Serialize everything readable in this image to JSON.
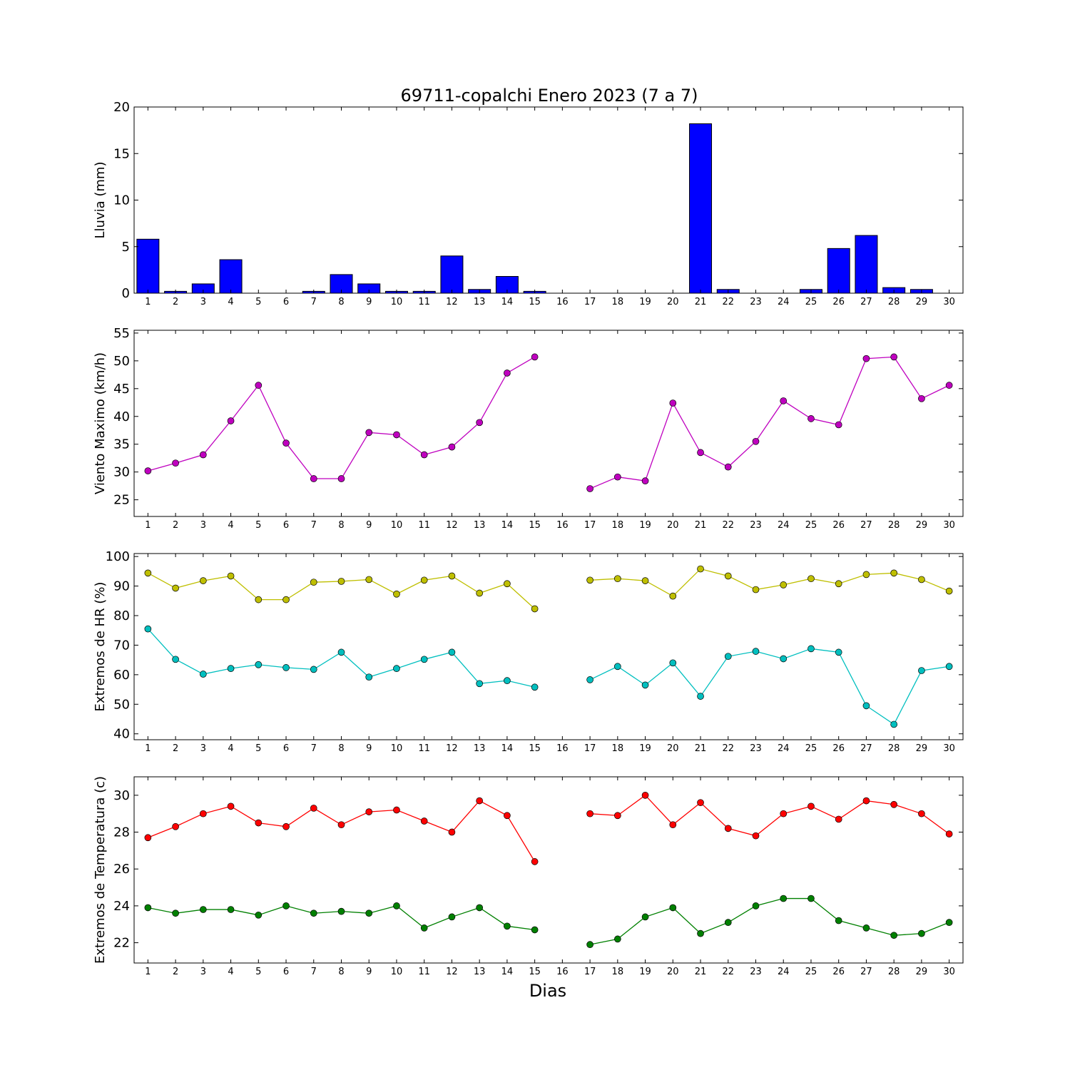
{
  "title": "69711-copalchi Enero 2023  (7 a 7)",
  "xlabel": "Dias",
  "chart_data": [
    {
      "type": "bar",
      "ylabel": "Lluvia (mm)",
      "ylim": [
        0,
        20
      ],
      "yticks": [
        0,
        5,
        10,
        15,
        20
      ],
      "x": [
        1,
        2,
        3,
        4,
        5,
        6,
        7,
        8,
        9,
        10,
        11,
        12,
        13,
        14,
        15,
        16,
        17,
        18,
        19,
        20,
        21,
        22,
        23,
        24,
        25,
        26,
        27,
        28,
        29,
        30
      ],
      "xlim": [
        0.5,
        30.5
      ],
      "series": [
        {
          "color": "#0000ff",
          "values": [
            5.8,
            0.2,
            1.0,
            3.6,
            0,
            0,
            0.2,
            2.0,
            1.0,
            0.2,
            0.2,
            4.0,
            0.4,
            1.8,
            0.2,
            0,
            0,
            0,
            0,
            0,
            18.2,
            0.4,
            0,
            0,
            0.4,
            4.8,
            6.2,
            0.6,
            0.4,
            0
          ]
        }
      ]
    },
    {
      "type": "line",
      "ylabel": "Viento Maximo (km/h)",
      "ylim": [
        22,
        55.5
      ],
      "yticks": [
        25,
        30,
        35,
        40,
        45,
        50,
        55
      ],
      "x": [
        1,
        2,
        3,
        4,
        5,
        6,
        7,
        8,
        9,
        10,
        11,
        12,
        13,
        14,
        15,
        16,
        17,
        18,
        19,
        20,
        21,
        22,
        23,
        24,
        25,
        26,
        27,
        28,
        29,
        30
      ],
      "xlim": [
        0.5,
        30.5
      ],
      "series": [
        {
          "color": "#bf00bf",
          "values": [
            30.2,
            31.6,
            33.1,
            39.2,
            45.6,
            35.2,
            28.8,
            28.8,
            37.1,
            36.7,
            33.1,
            34.5,
            38.9,
            47.8,
            50.7,
            null,
            27.0,
            29.1,
            28.4,
            42.4,
            33.5,
            30.9,
            35.5,
            42.8,
            39.6,
            38.5,
            50.4,
            50.7,
            43.2,
            45.6
          ]
        }
      ]
    },
    {
      "type": "line",
      "ylabel": "Extremos de HR (%)",
      "ylim": [
        38,
        101
      ],
      "yticks": [
        40,
        50,
        60,
        70,
        80,
        90,
        100
      ],
      "x": [
        1,
        2,
        3,
        4,
        5,
        6,
        7,
        8,
        9,
        10,
        11,
        12,
        13,
        14,
        15,
        16,
        17,
        18,
        19,
        20,
        21,
        22,
        23,
        24,
        25,
        26,
        27,
        28,
        29,
        30
      ],
      "xlim": [
        0.5,
        30.5
      ],
      "series": [
        {
          "color": "#bfbf00",
          "values": [
            94.4,
            89.3,
            91.8,
            93.4,
            85.4,
            85.4,
            91.3,
            91.6,
            92.2,
            87.3,
            92.0,
            93.4,
            87.6,
            90.8,
            82.3,
            null,
            92.0,
            92.5,
            91.8,
            86.6,
            95.8,
            93.4,
            88.8,
            90.4,
            92.5,
            90.8,
            93.9,
            94.4,
            92.2,
            88.3
          ]
        },
        {
          "color": "#00bfbf",
          "values": [
            75.5,
            65.2,
            60.2,
            62.1,
            63.4,
            62.4,
            61.8,
            67.6,
            59.2,
            62.1,
            65.2,
            67.6,
            57.0,
            58.0,
            55.8,
            null,
            58.3,
            62.8,
            56.5,
            64.0,
            52.7,
            66.2,
            67.9,
            65.4,
            68.8,
            67.6,
            49.5,
            43.2,
            61.4,
            62.8
          ]
        }
      ]
    },
    {
      "type": "line",
      "ylabel": "Extremos de Temperatura (c)",
      "ylim": [
        20.9,
        31
      ],
      "yticks": [
        22,
        24,
        26,
        28,
        30
      ],
      "x": [
        1,
        2,
        3,
        4,
        5,
        6,
        7,
        8,
        9,
        10,
        11,
        12,
        13,
        14,
        15,
        16,
        17,
        18,
        19,
        20,
        21,
        22,
        23,
        24,
        25,
        26,
        27,
        28,
        29,
        30
      ],
      "xlim": [
        0.5,
        30.5
      ],
      "series": [
        {
          "color": "#ff0000",
          "values": [
            27.7,
            28.3,
            29.0,
            29.4,
            28.5,
            28.3,
            29.3,
            28.4,
            29.1,
            29.2,
            28.6,
            28.0,
            29.7,
            28.9,
            26.4,
            null,
            29.0,
            28.9,
            30.0,
            28.4,
            29.6,
            28.2,
            27.8,
            29.0,
            29.4,
            28.7,
            29.7,
            29.5,
            29.0,
            27.9
          ]
        },
        {
          "color": "#008000",
          "values": [
            23.9,
            23.6,
            23.8,
            23.8,
            23.5,
            24.0,
            23.6,
            23.7,
            23.6,
            24.0,
            22.8,
            23.4,
            23.9,
            22.9,
            22.7,
            null,
            21.9,
            22.2,
            23.4,
            23.9,
            22.5,
            23.1,
            24.0,
            24.4,
            24.4,
            23.2,
            22.8,
            22.4,
            22.5,
            23.1
          ]
        }
      ]
    }
  ]
}
